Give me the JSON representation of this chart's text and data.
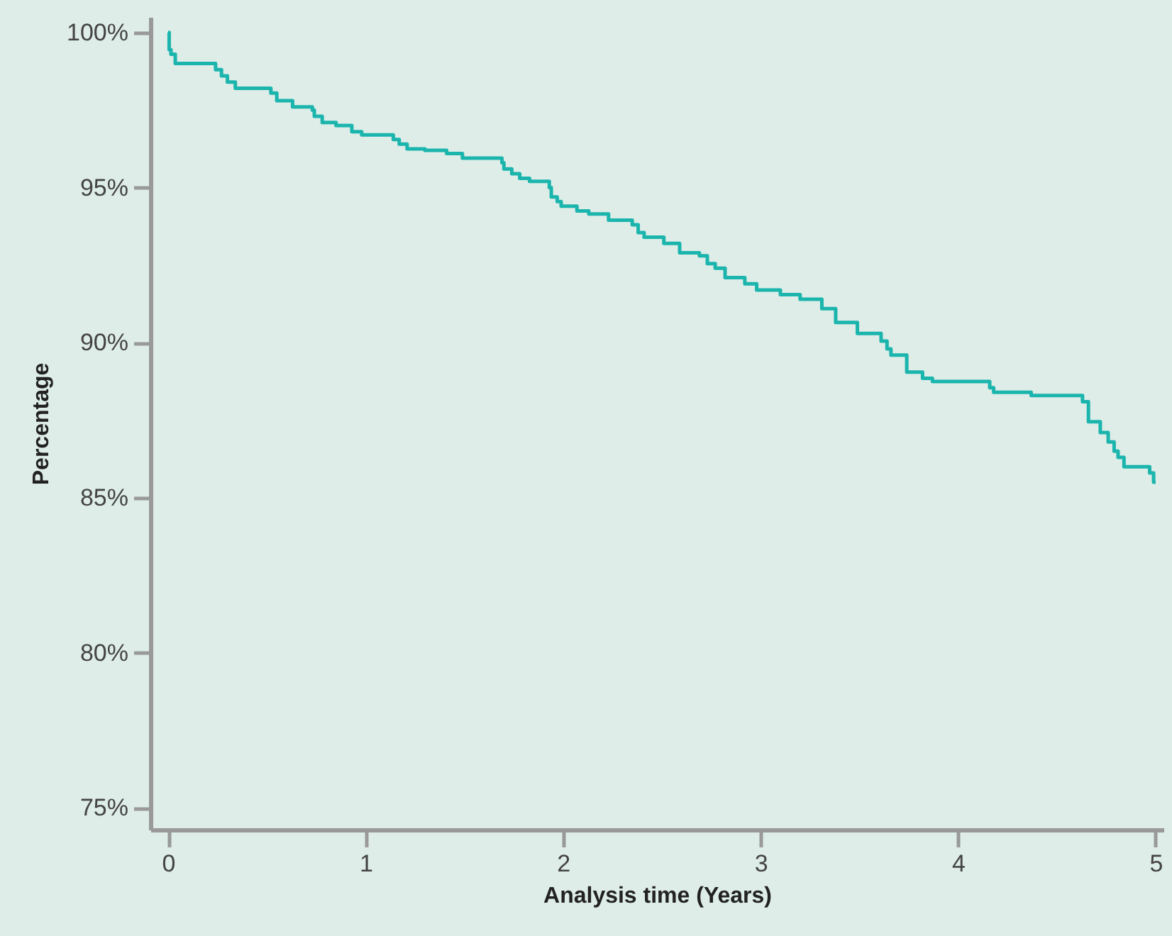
{
  "chart_data": {
    "type": "step",
    "xlabel": "Analysis time (Years)",
    "ylabel": "Percentage",
    "xlim": [
      -0.09,
      5.04
    ],
    "ylim": [
      74.3,
      100.5
    ],
    "xticks": [
      0,
      1,
      2,
      3,
      4,
      5
    ],
    "yticks": [
      {
        "value": 75,
        "label": "75%"
      },
      {
        "value": 80,
        "label": "80%"
      },
      {
        "value": 85,
        "label": "85%"
      },
      {
        "value": 90,
        "label": "90%"
      },
      {
        "value": 95,
        "label": "95%"
      },
      {
        "value": 100,
        "label": "100%"
      }
    ],
    "grid": false,
    "line_style": "solid",
    "marker": "none",
    "series": [
      {
        "color": "#1bb5ad",
        "x": [
          0,
          0.005,
          0.014,
          0.036,
          0.24,
          0.27,
          0.3,
          0.34,
          0.52,
          0.55,
          0.63,
          0.73,
          0.74,
          0.78,
          0.85,
          0.93,
          0.98,
          1.14,
          1.17,
          1.21,
          1.3,
          1.41,
          1.49,
          1.69,
          1.7,
          1.74,
          1.78,
          1.83,
          1.93,
          1.94,
          1.97,
          1.99,
          2.07,
          2.13,
          2.23,
          2.35,
          2.38,
          2.41,
          2.51,
          2.59,
          2.69,
          2.73,
          2.77,
          2.82,
          2.92,
          2.98,
          3.1,
          3.2,
          3.31,
          3.38,
          3.49,
          3.61,
          3.64,
          3.66,
          3.74,
          3.82,
          3.87,
          4.16,
          4.18,
          4.37,
          4.63,
          4.66,
          4.72,
          4.76,
          4.79,
          4.81,
          4.84,
          4.97,
          4.99,
          5.0
        ],
        "values": [
          100,
          99.45,
          99.3,
          99.0,
          98.8,
          98.6,
          98.4,
          98.2,
          98.05,
          97.8,
          97.6,
          97.5,
          97.3,
          97.1,
          97.0,
          96.8,
          96.7,
          96.55,
          96.4,
          96.25,
          96.2,
          96.1,
          95.95,
          95.8,
          95.6,
          95.45,
          95.3,
          95.2,
          95.0,
          94.7,
          94.55,
          94.4,
          94.25,
          94.15,
          93.95,
          93.8,
          93.55,
          93.4,
          93.2,
          92.9,
          92.8,
          92.55,
          92.4,
          92.1,
          91.9,
          91.7,
          91.55,
          91.4,
          91.1,
          90.65,
          90.3,
          90.05,
          89.8,
          89.6,
          89.05,
          88.85,
          88.75,
          88.55,
          88.4,
          88.3,
          88.1,
          87.45,
          87.1,
          86.8,
          86.5,
          86.3,
          86.0,
          85.8,
          85.5,
          85.5
        ]
      }
    ]
  }
}
